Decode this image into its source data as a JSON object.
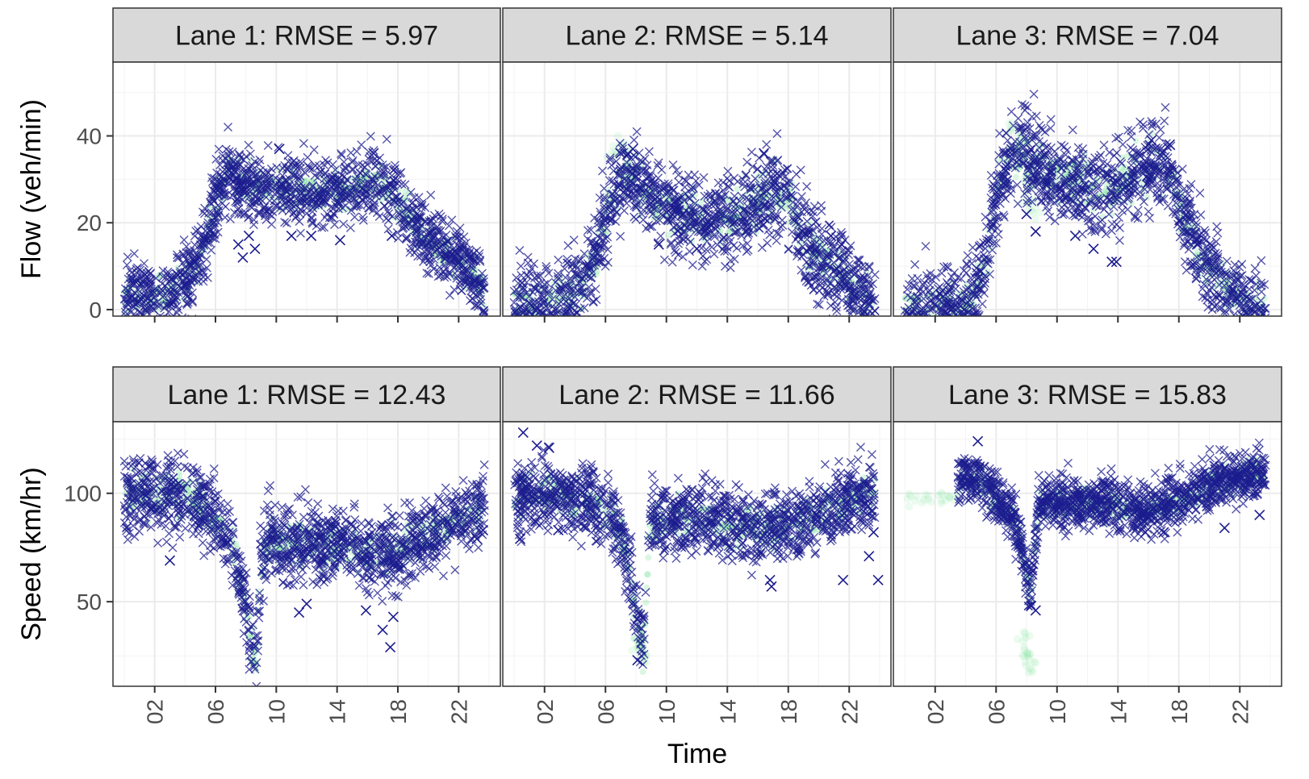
{
  "chart_data": {
    "type": "scatter",
    "layout": "facet-grid",
    "xlabel": "Time",
    "x_ticks": [
      "02",
      "06",
      "10",
      "14",
      "18",
      "22"
    ],
    "x_range": [
      0,
      24
    ],
    "grid": true,
    "colors": {
      "observed": "#1c1c8f",
      "estimated": "#7fe39a",
      "strip_bg": "#d9d9d9",
      "grid": "#ebebeb",
      "panel_border": "#333333"
    },
    "rows": [
      {
        "ylabel": "Flow (veh/min)",
        "y_ticks": [
          "0",
          "20",
          "40"
        ],
        "y_range": [
          -1.5,
          57
        ],
        "panels": [
          {
            "title": "Lane 1: RMSE = 5.97",
            "profile": [
              [
                0,
                3
              ],
              [
                1,
                3
              ],
              [
                2,
                3
              ],
              [
                3,
                4
              ],
              [
                4,
                6
              ],
              [
                4.8,
                10
              ],
              [
                5.5,
                18
              ],
              [
                6.2,
                28
              ],
              [
                7,
                31
              ],
              [
                8,
                29
              ],
              [
                9,
                28
              ],
              [
                11,
                27
              ],
              [
                13,
                27
              ],
              [
                15,
                28
              ],
              [
                17,
                29
              ],
              [
                18,
                26
              ],
              [
                19,
                20
              ],
              [
                20,
                17
              ],
              [
                21,
                14
              ],
              [
                22,
                12
              ],
              [
                23,
                8
              ],
              [
                23.7,
                3
              ]
            ],
            "band": 4,
            "outliers": [
              [
                7.5,
                15
              ],
              [
                7.8,
                12
              ],
              [
                8.2,
                17
              ],
              [
                8.6,
                14
              ],
              [
                10.2,
                37
              ],
              [
                11,
                17
              ],
              [
                12.3,
                17
              ],
              [
                14.2,
                16
              ],
              [
                16.4,
                36
              ],
              [
                17.6,
                17
              ]
            ]
          },
          {
            "title": "Lane 2: RMSE = 5.14",
            "profile": [
              [
                0,
                1
              ],
              [
                2,
                1
              ],
              [
                3.5,
                2
              ],
              [
                4.5,
                5
              ],
              [
                5.5,
                15
              ],
              [
                6.5,
                27
              ],
              [
                7.5,
                32
              ],
              [
                8.5,
                28
              ],
              [
                9.5,
                24
              ],
              [
                11,
                22
              ],
              [
                13,
                21
              ],
              [
                15,
                23
              ],
              [
                17,
                27
              ],
              [
                18,
                26
              ],
              [
                19,
                16
              ],
              [
                20,
                12
              ],
              [
                21,
                10
              ],
              [
                22,
                6
              ],
              [
                23,
                3
              ],
              [
                23.7,
                0
              ]
            ],
            "band": 5,
            "outliers": [
              [
                7,
                36
              ],
              [
                7.8,
                37
              ],
              [
                9.5,
                15
              ],
              [
                12,
                14
              ],
              [
                16.4,
                36
              ],
              [
                20.8,
                17
              ],
              [
                21.5,
                15
              ]
            ]
          },
          {
            "title": "Lane 3: RMSE = 7.04",
            "profile": [
              [
                0,
                0
              ],
              [
                2,
                0
              ],
              [
                3.5,
                0
              ],
              [
                4.5,
                2
              ],
              [
                5.3,
                12
              ],
              [
                6.2,
                28
              ],
              [
                7,
                35
              ],
              [
                8,
                36
              ],
              [
                9.5,
                32
              ],
              [
                11,
                29
              ],
              [
                13,
                27
              ],
              [
                14.5,
                30
              ],
              [
                16,
                33
              ],
              [
                17.5,
                32
              ],
              [
                18,
                24
              ],
              [
                19,
                16
              ],
              [
                20,
                9
              ],
              [
                21,
                6
              ],
              [
                22,
                2
              ],
              [
                23,
                0
              ],
              [
                23.7,
                0
              ]
            ],
            "band": 5,
            "outliers": [
              [
                8,
                22
              ],
              [
                8.6,
                18
              ],
              [
                11.2,
                17
              ],
              [
                12.4,
                14
              ],
              [
                13.6,
                11
              ],
              [
                13.9,
                11
              ],
              [
                16.2,
                39
              ],
              [
                17.4,
                38
              ],
              [
                19.2,
                15
              ]
            ]
          }
        ]
      },
      {
        "ylabel": "Speed (km/hr)",
        "y_ticks": [
          "50",
          "100"
        ],
        "y_range": [
          11,
          133
        ],
        "panels": [
          {
            "title": "Lane 1: RMSE = 12.43",
            "profile": [
              [
                0,
                99
              ],
              [
                2,
                99
              ],
              [
                4,
                98
              ],
              [
                5.5,
                93
              ],
              [
                6.5,
                84
              ],
              [
                7.2,
                74
              ],
              [
                7.8,
                55
              ],
              [
                8.3,
                32
              ],
              [
                8.7,
                25
              ],
              [
                9,
                70
              ],
              [
                9.5,
                78
              ],
              [
                11,
                78
              ],
              [
                13,
                77
              ],
              [
                15,
                75
              ],
              [
                17,
                72
              ],
              [
                18,
                73
              ],
              [
                19,
                77
              ],
              [
                20,
                80
              ],
              [
                22,
                87
              ],
              [
                23.7,
                94
              ]
            ],
            "band": 9,
            "outliers": [
              [
                3,
                69
              ],
              [
                11.5,
                45
              ],
              [
                12,
                49
              ],
              [
                15.9,
                46
              ],
              [
                17,
                37
              ],
              [
                17.5,
                29
              ],
              [
                17.7,
                43
              ],
              [
                23.2,
                79
              ],
              [
                23.6,
                83
              ]
            ]
          },
          {
            "title": "Lane 2: RMSE = 11.66",
            "profile": [
              [
                0,
                99
              ],
              [
                1.5,
                100
              ],
              [
                3,
                99
              ],
              [
                4.5,
                97
              ],
              [
                5.5,
                94
              ],
              [
                6.5,
                88
              ],
              [
                7.2,
                78
              ],
              [
                7.8,
                55
              ],
              [
                8.2,
                38
              ],
              [
                8.5,
                29
              ],
              [
                8.9,
                86
              ],
              [
                9.5,
                88
              ],
              [
                12,
                88
              ],
              [
                14,
                86
              ],
              [
                16,
                84
              ],
              [
                18,
                86
              ],
              [
                20,
                90
              ],
              [
                22,
                97
              ],
              [
                23.7,
                100
              ]
            ],
            "band": 8,
            "outliers": [
              [
                0.6,
                128
              ],
              [
                1.5,
                122
              ],
              [
                2.3,
                121
              ],
              [
                0.4,
                79
              ],
              [
                1.4,
                87
              ],
              [
                2.9,
                83
              ],
              [
                8.1,
                23
              ],
              [
                16.8,
                60
              ],
              [
                16.9,
                57
              ],
              [
                21.6,
                60
              ],
              [
                23.3,
                71
              ],
              [
                23.6,
                82
              ],
              [
                23.9,
                60
              ]
            ]
          },
          {
            "title": "Lane 3: RMSE = 15.83",
            "profile": [
              [
                3.5,
                108
              ],
              [
                4.5,
                107
              ],
              [
                5.5,
                102
              ],
              [
                6.5,
                93
              ],
              [
                7.2,
                88
              ],
              [
                7.8,
                70
              ],
              [
                8.3,
                55
              ],
              [
                8.8,
                95
              ],
              [
                10,
                96
              ],
              [
                12,
                96
              ],
              [
                14,
                94
              ],
              [
                16,
                92
              ],
              [
                18,
                96
              ],
              [
                20,
                104
              ],
              [
                22,
                108
              ],
              [
                23.7,
                110
              ]
            ],
            "band": 6,
            "outliers": [
              [
                4.8,
                124
              ],
              [
                8.3,
                48
              ],
              [
                8.6,
                46
              ],
              [
                15.8,
                82
              ],
              [
                17,
                82
              ],
              [
                21,
                84
              ],
              [
                23.3,
                90
              ]
            ]
          }
        ]
      }
    ],
    "faint_estimates": [
      {
        "row": 0,
        "panel": 1,
        "points": [
          [
            6.5,
            36
          ],
          [
            7,
            38
          ]
        ]
      },
      {
        "row": 0,
        "panel": 2,
        "points": [
          [
            7,
            42
          ],
          [
            7.5,
            38
          ],
          [
            8,
            30
          ],
          [
            8.3,
            25
          ],
          [
            8.6,
            22
          ]
        ]
      },
      {
        "row": 1,
        "panel": 1,
        "points": [
          [
            8.2,
            28
          ],
          [
            8.4,
            24
          ],
          [
            8,
            32
          ]
        ]
      },
      {
        "row": 1,
        "panel": 2,
        "points": [
          [
            0.5,
            97
          ],
          [
            1.5,
            96
          ],
          [
            2.5,
            98
          ],
          [
            3.2,
            97
          ],
          [
            8,
            28
          ],
          [
            8.2,
            24
          ],
          [
            8.4,
            20
          ],
          [
            7.8,
            35
          ]
        ]
      }
    ]
  }
}
